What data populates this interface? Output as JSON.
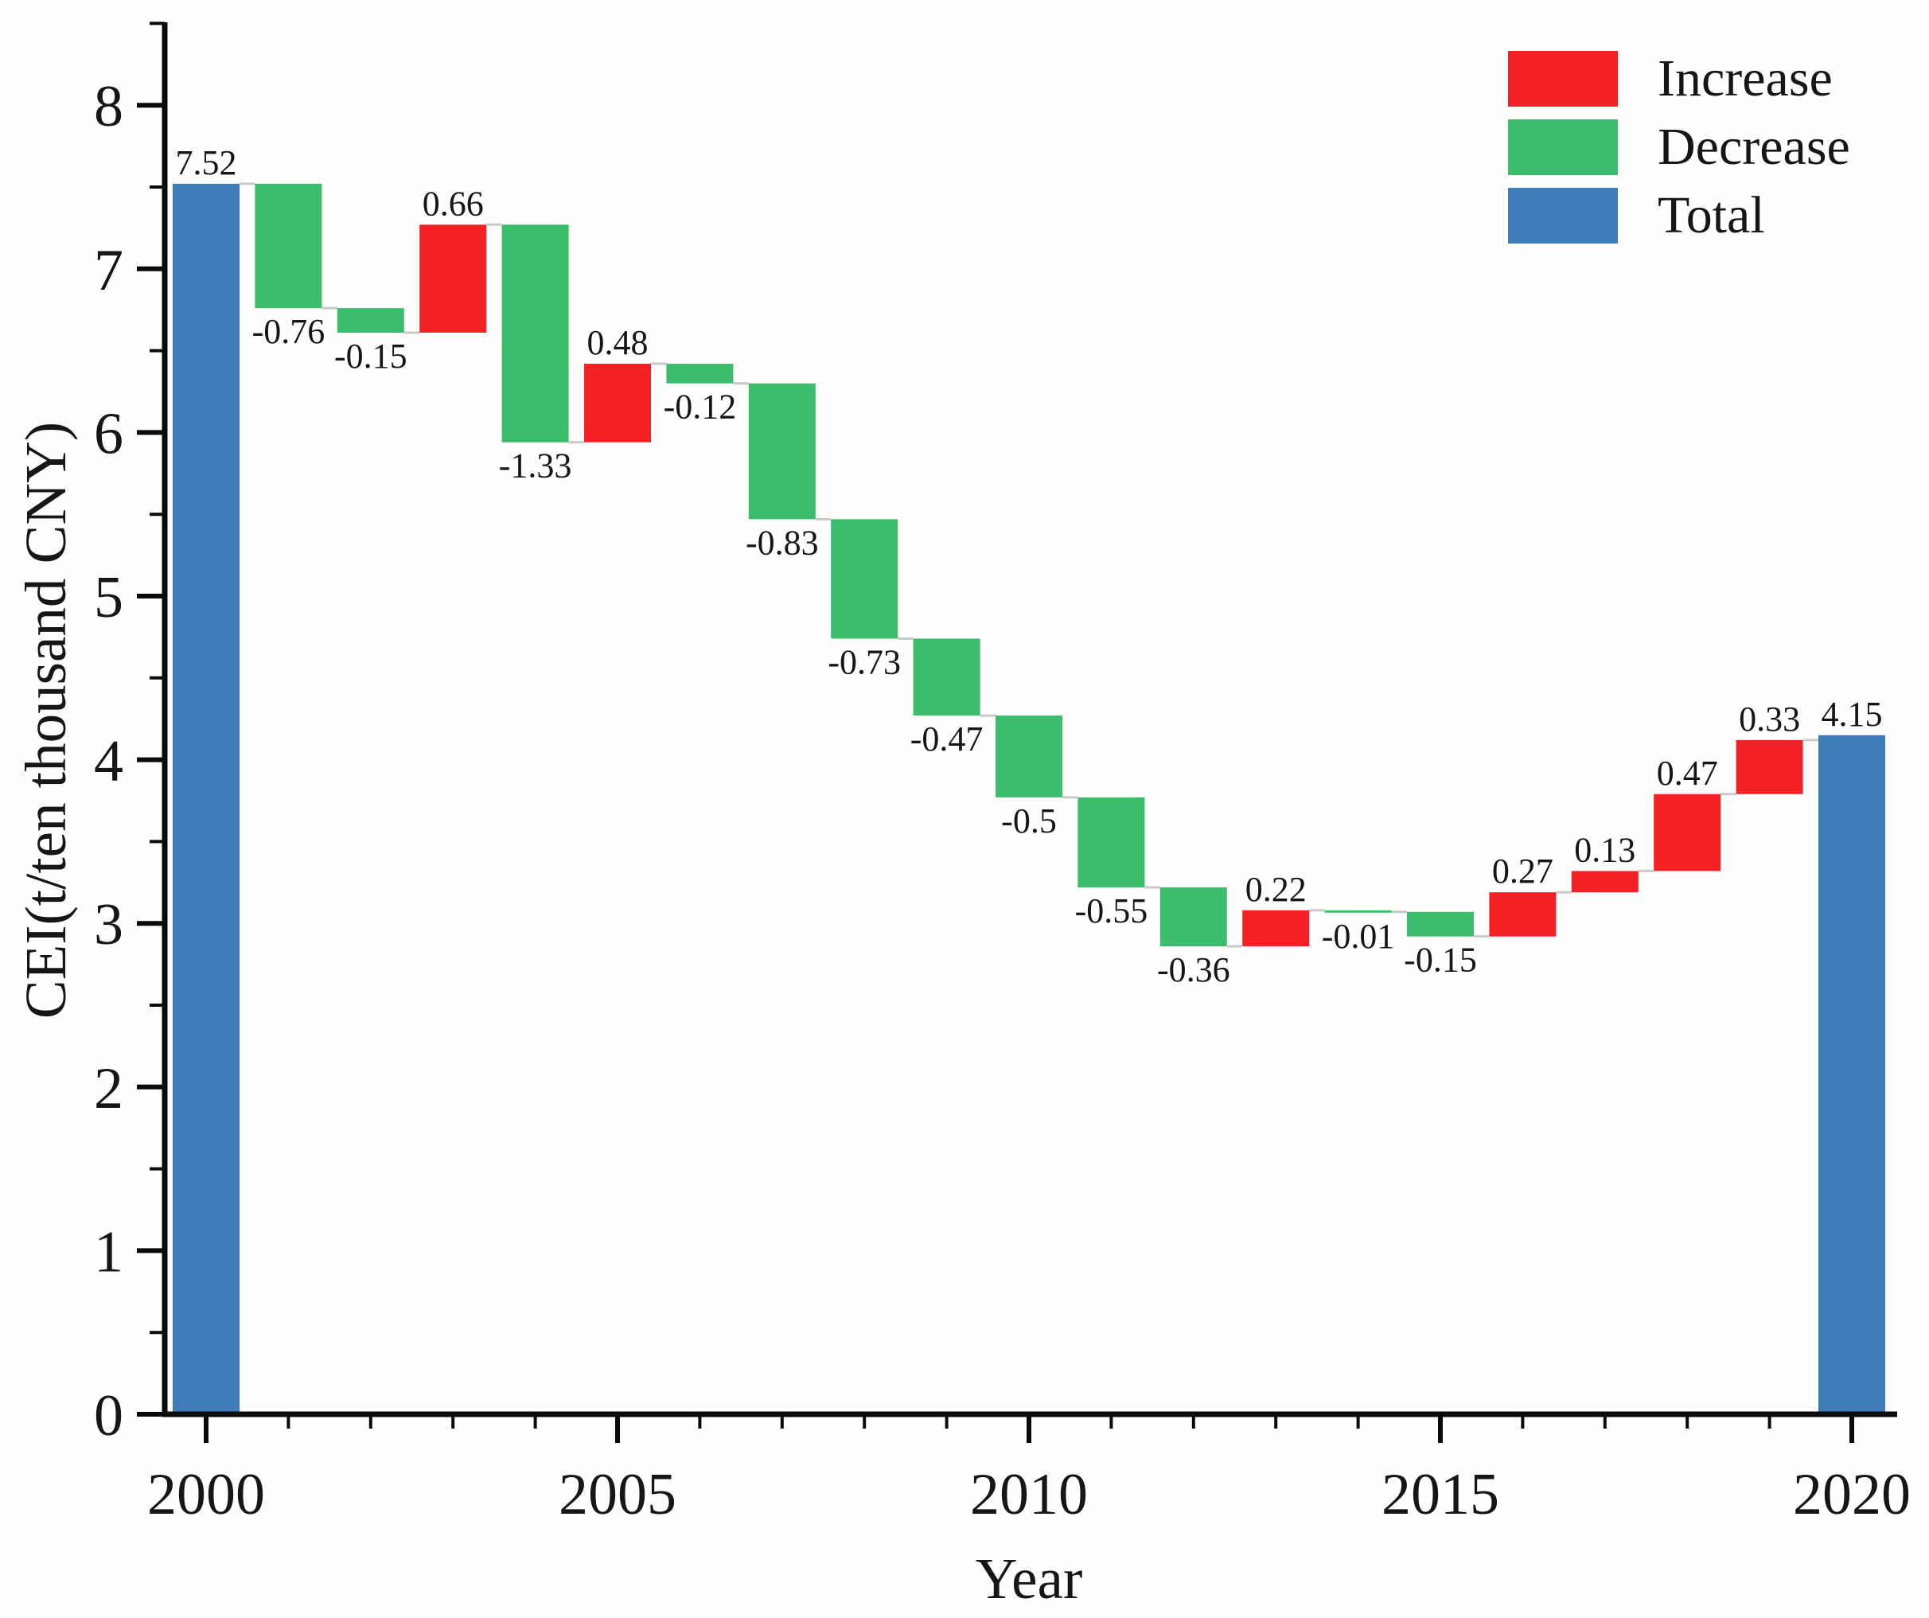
{
  "chart_data": {
    "type": "bar",
    "subtype": "waterfall",
    "title": "",
    "xlabel": "Year",
    "ylabel": "CEI(t/ten thousand CNY)",
    "years": [
      2000,
      2001,
      2002,
      2003,
      2004,
      2005,
      2006,
      2007,
      2008,
      2009,
      2010,
      2011,
      2012,
      2013,
      2014,
      2015,
      2016,
      2017,
      2018,
      2019,
      2020
    ],
    "values": [
      7.52,
      -0.76,
      -0.15,
      0.66,
      -1.33,
      0.48,
      -0.12,
      -0.83,
      -0.73,
      -0.47,
      -0.5,
      -0.55,
      -0.36,
      0.22,
      -0.01,
      -0.15,
      0.27,
      0.13,
      0.47,
      0.33,
      4.15
    ],
    "labels": [
      "7.52",
      "-0.76",
      "-0.15",
      "0.66",
      "-1.33",
      "0.48",
      "-0.12",
      "-0.83",
      "-0.73",
      "-0.47",
      "-0.5",
      "-0.55",
      "-0.36",
      "0.22",
      "-0.01",
      "-0.15",
      "0.27",
      "0.13",
      "0.47",
      "0.33",
      "4.15"
    ],
    "bar_types": [
      "total",
      "decrease",
      "decrease",
      "increase",
      "decrease",
      "increase",
      "decrease",
      "decrease",
      "decrease",
      "decrease",
      "decrease",
      "decrease",
      "decrease",
      "increase",
      "decrease",
      "decrease",
      "increase",
      "increase",
      "increase",
      "increase",
      "total"
    ],
    "ylim": [
      0,
      8.5
    ],
    "yticks": [
      "0",
      "1",
      "2",
      "3",
      "4",
      "5",
      "6",
      "7",
      "8"
    ],
    "y_minor_step": 0.5,
    "xticks": [
      "2000",
      "2005",
      "2010",
      "2015",
      "2020"
    ],
    "grid": false,
    "legend_position": "top-right",
    "legend": [
      {
        "label": "Increase",
        "color": "#f42126"
      },
      {
        "label": "Decrease",
        "color": "#3cbd6b"
      },
      {
        "label": "Total",
        "color": "#417cba"
      }
    ],
    "colors": {
      "increase": "#f42126",
      "decrease": "#3cbd6b",
      "total": "#417cba",
      "connector": "#c9c9c9",
      "axis": "#0a0a0a",
      "text": "#161616"
    }
  }
}
